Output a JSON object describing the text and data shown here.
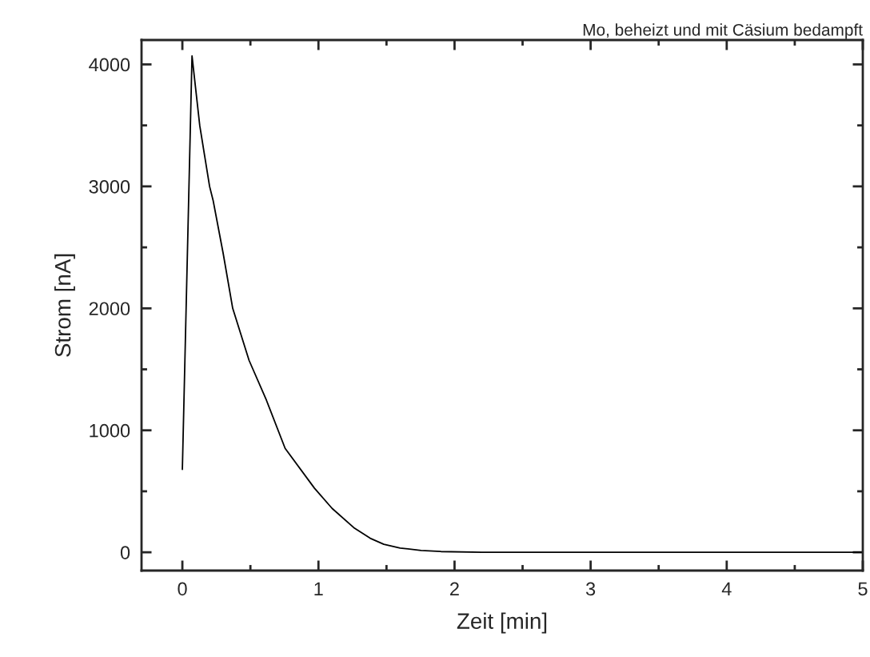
{
  "chart_data": {
    "type": "line",
    "title": "Mo, beheizt und mit Cäsium bedampft",
    "xlabel": "Zeit [min]",
    "ylabel": "Strom [nA]",
    "series": [
      {
        "color": "#000000",
        "x": [
          0,
          0.071,
          0.128,
          0.2,
          0.226,
          0.3,
          0.37,
          0.49,
          0.618,
          0.755,
          0.971,
          1.1,
          1.265,
          1.38,
          1.48,
          1.6,
          1.755,
          1.9,
          2.2,
          3,
          4,
          5
        ],
        "values": [
          680,
          4070,
          3497,
          3000,
          2885,
          2450,
          2000,
          1574,
          1246,
          852,
          525,
          360,
          197,
          115,
          66,
          35,
          15,
          6,
          0,
          0,
          0,
          0
        ]
      }
    ],
    "xlim": [
      -0.3,
      5
    ],
    "xticks": [
      0,
      1,
      2,
      3,
      4,
      5
    ],
    "ylim": [
      -150,
      4200
    ],
    "yticks": [
      0,
      1000,
      2000,
      3000,
      4000
    ],
    "grid": false,
    "marker": "none",
    "line_style": "solid"
  }
}
